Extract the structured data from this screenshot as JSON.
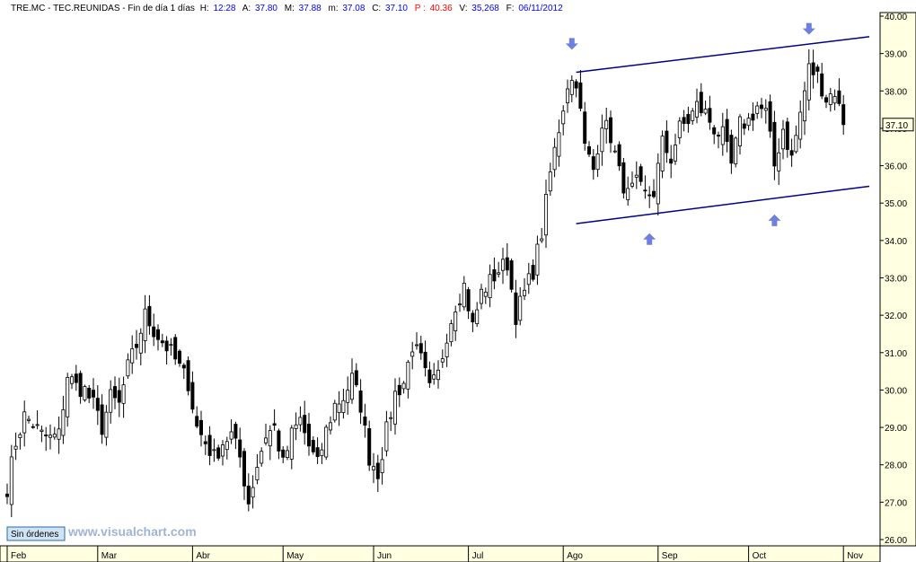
{
  "header": {
    "symbol": "TRE.MC",
    "name": "TEC.REUNIDAS",
    "period": "Fin de día 1 días",
    "h_label": "H:",
    "h_value": "12:28",
    "a_label": "A:",
    "a_value": "37.80",
    "m_label": "M:",
    "m_value": "37.88",
    "min_label": "m:",
    "min_value": "37.08",
    "c_label": "C:",
    "c_value": "37.10",
    "p_label": "P :",
    "p_value": "40.36",
    "v_label": "V:",
    "v_value": "35,268",
    "f_label": "F:",
    "f_value": "06/11/2012"
  },
  "badge": {
    "label": "Sin órdenes"
  },
  "watermark": "www.visualchart.com",
  "last_price_label": "37.10",
  "colors": {
    "up": "#ffffff",
    "down": "#000000",
    "channel": "#00008b",
    "arrow": "#6f7fdc",
    "grid": "#e6e6e6",
    "axis_bg": "#ffffe1"
  },
  "chart_data": {
    "type": "candlestick",
    "x_axis": {
      "labels": [
        "Feb",
        "Mar",
        "Abr",
        "May",
        "Jun",
        "Jul",
        "Ago",
        "Sep",
        "Oct",
        "Nov"
      ],
      "label_index": [
        0,
        21,
        43,
        64,
        85,
        107,
        129,
        151,
        172,
        194
      ]
    },
    "y_axis": {
      "min": 26.0,
      "max": 40.0,
      "ticks": [
        "26.00",
        "27.00",
        "28.00",
        "29.00",
        "30.00",
        "31.00",
        "32.00",
        "33.00",
        "34.00",
        "35.00",
        "36.00",
        "37.00",
        "38.00",
        "39.00",
        "40.00"
      ]
    },
    "close_path": [
      [
        0,
        27.4
      ],
      [
        2,
        28.6
      ],
      [
        4,
        29.3
      ],
      [
        6,
        29.1
      ],
      [
        8,
        28.8
      ],
      [
        10,
        28.7
      ],
      [
        12,
        28.8
      ],
      [
        14,
        30.4
      ],
      [
        16,
        30.1
      ],
      [
        18,
        30.0
      ],
      [
        20,
        29.6
      ],
      [
        22,
        29.0
      ],
      [
        24,
        29.8
      ],
      [
        26,
        29.6
      ],
      [
        28,
        30.6
      ],
      [
        30,
        31.2
      ],
      [
        32,
        32.0
      ],
      [
        34,
        31.6
      ],
      [
        36,
        31.3
      ],
      [
        38,
        31.0
      ],
      [
        40,
        30.6
      ],
      [
        42,
        30.2
      ],
      [
        44,
        29.0
      ],
      [
        46,
        28.6
      ],
      [
        48,
        28.2
      ],
      [
        50,
        28.6
      ],
      [
        52,
        28.8
      ],
      [
        54,
        28.2
      ],
      [
        56,
        27.0
      ],
      [
        58,
        28.0
      ],
      [
        60,
        28.8
      ],
      [
        62,
        29.0
      ],
      [
        64,
        28.0
      ],
      [
        66,
        28.8
      ],
      [
        68,
        29.2
      ],
      [
        70,
        28.5
      ],
      [
        72,
        28.0
      ],
      [
        74,
        28.9
      ],
      [
        76,
        29.6
      ],
      [
        78,
        29.8
      ],
      [
        80,
        30.3
      ],
      [
        82,
        29.6
      ],
      [
        84,
        28.2
      ],
      [
        86,
        27.8
      ],
      [
        88,
        28.9
      ],
      [
        90,
        29.9
      ],
      [
        92,
        30.2
      ],
      [
        94,
        31.2
      ],
      [
        96,
        30.8
      ],
      [
        98,
        30.0
      ],
      [
        100,
        30.4
      ],
      [
        102,
        31.5
      ],
      [
        104,
        32.3
      ],
      [
        106,
        32.8
      ],
      [
        108,
        31.7
      ],
      [
        110,
        32.6
      ],
      [
        112,
        32.9
      ],
      [
        114,
        33.2
      ],
      [
        116,
        33.4
      ],
      [
        118,
        32.0
      ],
      [
        120,
        32.6
      ],
      [
        122,
        33.2
      ],
      [
        124,
        34.2
      ],
      [
        126,
        35.8
      ],
      [
        128,
        37.0
      ],
      [
        130,
        38.2
      ],
      [
        132,
        38.3
      ],
      [
        134,
        36.5
      ],
      [
        136,
        35.9
      ],
      [
        138,
        37.2
      ],
      [
        140,
        36.8
      ],
      [
        142,
        35.8
      ],
      [
        144,
        35.2
      ],
      [
        146,
        35.5
      ],
      [
        148,
        35.2
      ],
      [
        150,
        35.3
      ],
      [
        152,
        36.6
      ],
      [
        154,
        36.2
      ],
      [
        156,
        37.0
      ],
      [
        158,
        37.2
      ],
      [
        160,
        37.6
      ],
      [
        162,
        37.4
      ],
      [
        164,
        37.0
      ],
      [
        166,
        36.8
      ],
      [
        168,
        36.0
      ],
      [
        170,
        37.1
      ],
      [
        172,
        37.2
      ],
      [
        174,
        37.6
      ],
      [
        176,
        37.4
      ],
      [
        178,
        36.0
      ],
      [
        180,
        37.0
      ],
      [
        182,
        36.2
      ],
      [
        184,
        37.4
      ],
      [
        186,
        38.6
      ],
      [
        188,
        38.4
      ],
      [
        190,
        37.8
      ],
      [
        192,
        38.0
      ],
      [
        194,
        37.1
      ]
    ],
    "channel": {
      "upper": [
        [
          132,
          38.5
        ],
        [
          200,
          39.45
        ]
      ],
      "lower": [
        [
          132,
          34.45
        ],
        [
          200,
          35.45
        ]
      ]
    },
    "markers": [
      {
        "type": "down-arrow",
        "index": 131,
        "value": 39.2
      },
      {
        "type": "up-arrow",
        "index": 149,
        "value": 34.1
      },
      {
        "type": "up-arrow",
        "index": 178,
        "value": 34.6
      },
      {
        "type": "down-arrow",
        "index": 186,
        "value": 39.6
      }
    ]
  }
}
